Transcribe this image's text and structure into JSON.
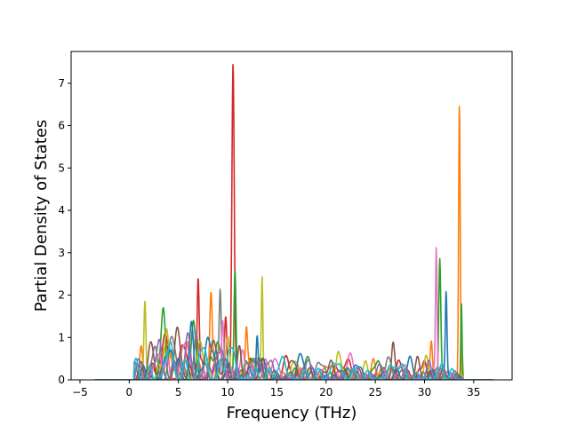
{
  "chart_data": {
    "type": "line",
    "title": "",
    "xlabel": "Frequency (THz)",
    "ylabel": "Partial Density of States",
    "xlim": [
      -5.9,
      38.9
    ],
    "ylim": [
      0,
      7.75
    ],
    "xticks": [
      -5,
      0,
      5,
      10,
      15,
      20,
      25,
      30,
      35
    ],
    "yticks": [
      0,
      1,
      2,
      3,
      4,
      5,
      6,
      7
    ],
    "grid": false,
    "legend": "none",
    "x_domain": [
      -3.5,
      37.0
    ],
    "palette": [
      "#1f77b4",
      "#ff7f0e",
      "#2ca02c",
      "#d62728",
      "#9467bd",
      "#8c564b",
      "#e377c2",
      "#7f7f7f",
      "#bcbd22",
      "#17becf"
    ],
    "series": [
      {
        "color": "#d62728",
        "peaks": [
          [
            10.55,
            7.45,
            0.12
          ],
          [
            7.0,
            2.3,
            0.1
          ],
          [
            9.8,
            1.5,
            0.12
          ],
          [
            5.5,
            0.8,
            0.3
          ],
          [
            3.5,
            0.7,
            0.35
          ],
          [
            16.0,
            0.35,
            0.4
          ],
          [
            22.0,
            0.3,
            0.6
          ],
          [
            27.5,
            0.35,
            0.3
          ],
          [
            30.0,
            0.45,
            0.2
          ]
        ]
      },
      {
        "color": "#ff7f0e",
        "peaks": [
          [
            33.55,
            6.55,
            0.08
          ],
          [
            8.3,
            1.72,
            0.12
          ],
          [
            11.9,
            0.9,
            0.1
          ],
          [
            1.2,
            0.7,
            0.15
          ],
          [
            4.0,
            0.8,
            0.3
          ],
          [
            6.0,
            0.9,
            0.25
          ],
          [
            14.0,
            0.4,
            0.3
          ],
          [
            20.0,
            0.3,
            0.4
          ],
          [
            24.8,
            0.5,
            0.2
          ],
          [
            30.7,
            0.65,
            0.1
          ]
        ]
      },
      {
        "color": "#2ca02c",
        "peaks": [
          [
            10.75,
            2.6,
            0.1
          ],
          [
            31.55,
            2.73,
            0.1
          ],
          [
            33.75,
            1.7,
            0.06
          ],
          [
            3.5,
            1.45,
            0.2
          ],
          [
            6.5,
            1.35,
            0.2
          ],
          [
            9.0,
            0.9,
            0.3
          ],
          [
            12.5,
            0.5,
            0.3
          ],
          [
            18.0,
            0.35,
            0.4
          ],
          [
            25.0,
            0.3,
            0.4
          ]
        ]
      },
      {
        "color": "#bcbd22",
        "peaks": [
          [
            13.5,
            2.45,
            0.08
          ],
          [
            1.6,
            1.78,
            0.1
          ],
          [
            3.8,
            1.2,
            0.2
          ],
          [
            7.2,
            0.9,
            0.3
          ],
          [
            10.0,
            1.0,
            0.2
          ],
          [
            17.0,
            0.4,
            0.3
          ],
          [
            21.2,
            0.58,
            0.2
          ],
          [
            24.0,
            0.45,
            0.2
          ],
          [
            30.2,
            0.35,
            0.2
          ]
        ]
      },
      {
        "color": "#7f7f7f",
        "peaks": [
          [
            9.25,
            1.73,
            0.1
          ],
          [
            6.8,
            1.1,
            0.2
          ],
          [
            4.5,
            0.8,
            0.3
          ],
          [
            2.5,
            0.6,
            0.3
          ],
          [
            12.0,
            0.4,
            0.3
          ],
          [
            19.5,
            0.35,
            0.4
          ],
          [
            26.5,
            0.3,
            0.4
          ]
        ]
      },
      {
        "color": "#e377c2",
        "peaks": [
          [
            31.2,
            2.93,
            0.08
          ],
          [
            9.5,
            1.4,
            0.12
          ],
          [
            5.8,
            0.9,
            0.3
          ],
          [
            3.0,
            0.6,
            0.3
          ],
          [
            11.5,
            0.7,
            0.2
          ],
          [
            14.8,
            0.5,
            0.3
          ],
          [
            22.5,
            0.35,
            0.4
          ],
          [
            28.0,
            0.35,
            0.3
          ]
        ]
      },
      {
        "color": "#1f77b4",
        "peaks": [
          [
            32.2,
            1.85,
            0.08
          ],
          [
            13.0,
            1.05,
            0.1
          ],
          [
            6.3,
            1.2,
            0.2
          ],
          [
            8.0,
            1.0,
            0.3
          ],
          [
            4.2,
            0.7,
            0.3
          ],
          [
            17.5,
            0.5,
            0.3
          ],
          [
            23.0,
            0.35,
            0.3
          ],
          [
            28.5,
            0.4,
            0.3
          ]
        ]
      },
      {
        "color": "#8c564b",
        "peaks": [
          [
            2.2,
            0.9,
            0.25
          ],
          [
            5.0,
            0.85,
            0.3
          ],
          [
            8.7,
            0.75,
            0.3
          ],
          [
            11.2,
            0.6,
            0.2
          ],
          [
            16.5,
            0.45,
            0.3
          ],
          [
            20.5,
            0.4,
            0.3
          ],
          [
            26.8,
            0.65,
            0.15
          ],
          [
            29.3,
            0.55,
            0.2
          ]
        ]
      },
      {
        "color": "#9467bd",
        "peaks": [
          [
            3.0,
            0.8,
            0.3
          ],
          [
            6.0,
            0.7,
            0.3
          ],
          [
            9.0,
            0.6,
            0.3
          ],
          [
            14.0,
            0.35,
            0.4
          ],
          [
            18.5,
            0.3,
            0.4
          ],
          [
            25.5,
            0.35,
            0.3
          ],
          [
            30.5,
            0.4,
            0.2
          ]
        ]
      },
      {
        "color": "#17becf",
        "peaks": [
          [
            4.0,
            0.6,
            0.4
          ],
          [
            7.5,
            0.75,
            0.3
          ],
          [
            10.2,
            0.7,
            0.3
          ],
          [
            15.5,
            0.4,
            0.4
          ],
          [
            21.0,
            0.35,
            0.5
          ],
          [
            27.0,
            0.3,
            0.5
          ],
          [
            31.8,
            0.35,
            0.15
          ]
        ]
      }
    ]
  }
}
